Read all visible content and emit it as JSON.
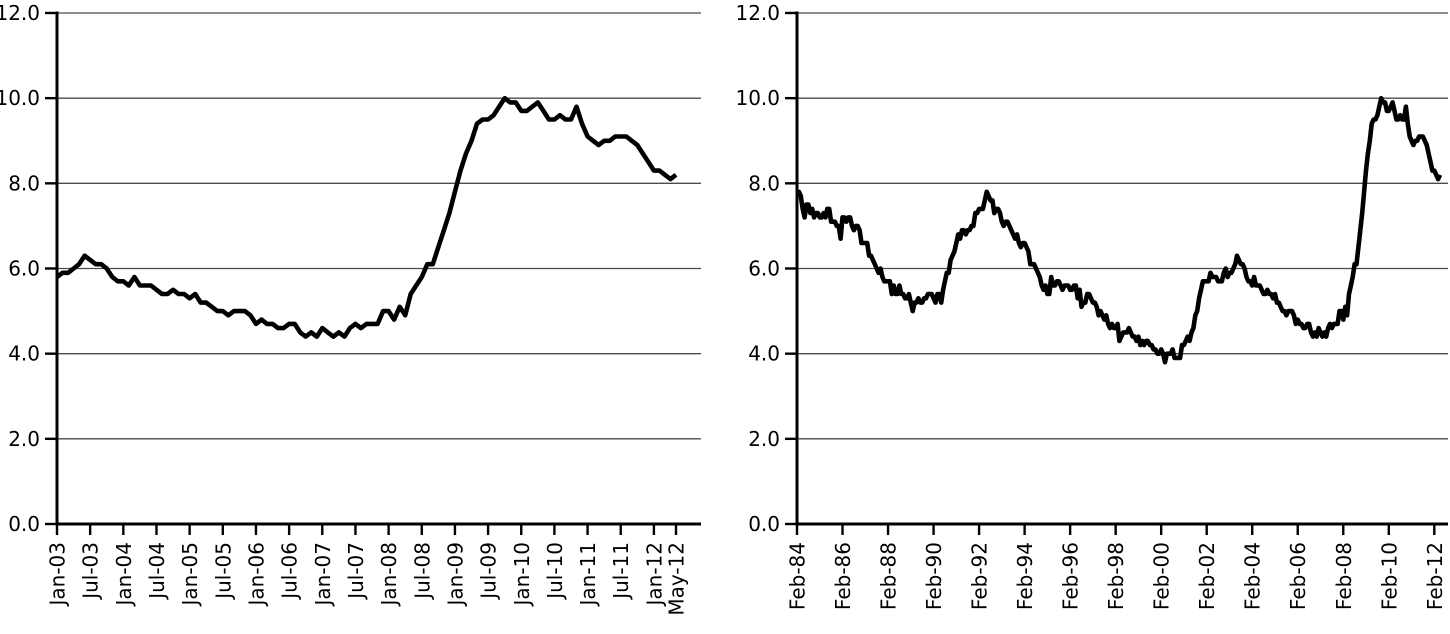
{
  "figure": {
    "description_note": "",
    "background": "#ffffff"
  },
  "colors": {
    "line": "#000000",
    "grid": "#4b4b4b",
    "axis": "#000000",
    "tick": "#000000",
    "text": "#000000",
    "background": "#ffffff"
  },
  "chart_data": [
    {
      "type": "line",
      "title": "",
      "xlabel": "",
      "ylabel": "",
      "legend": "none",
      "grid": "horizontal",
      "ylim": [
        0,
        12
      ],
      "ytick_step": 2,
      "ytick_labels": [
        "0.0",
        "2.0",
        "4.0",
        "6.0",
        "8.0",
        "10.0",
        "12.0"
      ],
      "x_frequency": "monthly",
      "xtick_labels": [
        "Jan-03",
        "Jul-03",
        "Jan-04",
        "Jul-04",
        "Jan-05",
        "Jul-05",
        "Jan-06",
        "Jul-06",
        "Jan-07",
        "Jul-07",
        "Jan-08",
        "Jul-08",
        "Jan-09",
        "Jul-09",
        "Jan-10",
        "Jul-10",
        "Jan-11",
        "Jul-11",
        "Jan-12",
        "May-12"
      ],
      "xtick_indices": [
        0,
        6,
        12,
        18,
        24,
        30,
        36,
        42,
        48,
        54,
        60,
        66,
        72,
        78,
        84,
        90,
        96,
        102,
        108,
        112
      ],
      "values": [
        5.8,
        5.9,
        5.9,
        6.0,
        6.1,
        6.3,
        6.2,
        6.1,
        6.1,
        6.0,
        5.8,
        5.7,
        5.7,
        5.6,
        5.8,
        5.6,
        5.6,
        5.6,
        5.5,
        5.4,
        5.4,
        5.5,
        5.4,
        5.4,
        5.3,
        5.4,
        5.2,
        5.2,
        5.1,
        5.0,
        5.0,
        4.9,
        5.0,
        5.0,
        5.0,
        4.9,
        4.7,
        4.8,
        4.7,
        4.7,
        4.6,
        4.6,
        4.7,
        4.7,
        4.5,
        4.4,
        4.5,
        4.4,
        4.6,
        4.5,
        4.4,
        4.5,
        4.4,
        4.6,
        4.7,
        4.6,
        4.7,
        4.7,
        4.7,
        5.0,
        5.0,
        4.8,
        5.1,
        4.9,
        5.4,
        5.6,
        5.8,
        6.1,
        6.1,
        6.5,
        6.9,
        7.3,
        7.8,
        8.3,
        8.7,
        9.0,
        9.4,
        9.5,
        9.5,
        9.6,
        9.8,
        10.0,
        9.9,
        9.9,
        9.7,
        9.7,
        9.8,
        9.9,
        9.7,
        9.5,
        9.5,
        9.6,
        9.5,
        9.5,
        9.8,
        9.4,
        9.1,
        9.0,
        8.9,
        9.0,
        9.0,
        9.1,
        9.1,
        9.1,
        9.0,
        8.9,
        8.7,
        8.5,
        8.3,
        8.3,
        8.2,
        8.1,
        8.2
      ]
    },
    {
      "type": "line",
      "title": "",
      "xlabel": "",
      "ylabel": "",
      "legend": "none",
      "grid": "horizontal",
      "ylim": [
        0,
        12
      ],
      "ytick_step": 2,
      "ytick_labels": [
        "0.0",
        "2.0",
        "4.0",
        "6.0",
        "8.0",
        "10.0",
        "12.0"
      ],
      "x_frequency": "monthly",
      "xtick_labels": [
        "Feb-84",
        "Feb-86",
        "Feb-88",
        "Feb-90",
        "Feb-92",
        "Feb-94",
        "Feb-96",
        "Feb-98",
        "Feb-00",
        "Feb-02",
        "Feb-04",
        "Feb-06",
        "Feb-08",
        "Feb-10",
        "Feb-12"
      ],
      "xtick_indices": [
        0,
        24,
        48,
        72,
        96,
        120,
        144,
        168,
        192,
        216,
        240,
        264,
        288,
        312,
        336
      ],
      "values": [
        7.8,
        7.8,
        7.7,
        7.4,
        7.2,
        7.5,
        7.5,
        7.3,
        7.4,
        7.2,
        7.3,
        7.3,
        7.2,
        7.2,
        7.3,
        7.2,
        7.4,
        7.4,
        7.1,
        7.1,
        7.1,
        7.0,
        7.0,
        6.7,
        7.2,
        7.2,
        7.1,
        7.2,
        7.2,
        7.0,
        6.9,
        7.0,
        7.0,
        6.9,
        6.6,
        6.6,
        6.6,
        6.6,
        6.3,
        6.3,
        6.2,
        6.1,
        6.0,
        5.9,
        6.0,
        5.8,
        5.7,
        5.7,
        5.7,
        5.7,
        5.4,
        5.6,
        5.4,
        5.4,
        5.6,
        5.4,
        5.4,
        5.3,
        5.3,
        5.4,
        5.2,
        5.0,
        5.2,
        5.2,
        5.3,
        5.2,
        5.2,
        5.3,
        5.3,
        5.4,
        5.4,
        5.4,
        5.3,
        5.2,
        5.4,
        5.4,
        5.2,
        5.5,
        5.7,
        5.9,
        5.9,
        6.2,
        6.3,
        6.4,
        6.6,
        6.8,
        6.7,
        6.9,
        6.9,
        6.8,
        6.9,
        6.9,
        7.0,
        7.0,
        7.3,
        7.3,
        7.4,
        7.4,
        7.4,
        7.6,
        7.8,
        7.7,
        7.6,
        7.6,
        7.3,
        7.4,
        7.4,
        7.3,
        7.1,
        7.0,
        7.1,
        7.1,
        7.0,
        6.9,
        6.8,
        6.7,
        6.8,
        6.6,
        6.5,
        6.6,
        6.6,
        6.5,
        6.4,
        6.1,
        6.1,
        6.1,
        6.0,
        5.9,
        5.8,
        5.6,
        5.5,
        5.6,
        5.4,
        5.4,
        5.8,
        5.6,
        5.6,
        5.7,
        5.7,
        5.6,
        5.5,
        5.6,
        5.6,
        5.6,
        5.5,
        5.5,
        5.6,
        5.6,
        5.3,
        5.5,
        5.1,
        5.2,
        5.2,
        5.4,
        5.4,
        5.3,
        5.2,
        5.2,
        5.1,
        4.9,
        5.0,
        4.9,
        4.8,
        4.9,
        4.7,
        4.6,
        4.7,
        4.6,
        4.6,
        4.7,
        4.3,
        4.4,
        4.5,
        4.5,
        4.5,
        4.6,
        4.5,
        4.4,
        4.4,
        4.3,
        4.4,
        4.2,
        4.3,
        4.2,
        4.3,
        4.3,
        4.2,
        4.2,
        4.1,
        4.1,
        4.0,
        4.0,
        4.1,
        4.0,
        3.8,
        4.0,
        4.0,
        4.0,
        4.1,
        3.9,
        3.9,
        3.9,
        3.9,
        4.2,
        4.2,
        4.3,
        4.4,
        4.3,
        4.5,
        4.6,
        4.9,
        5.0,
        5.3,
        5.5,
        5.7,
        5.7,
        5.7,
        5.7,
        5.9,
        5.8,
        5.8,
        5.8,
        5.7,
        5.7,
        5.7,
        5.9,
        6.0,
        5.8,
        5.9,
        5.9,
        6.0,
        6.1,
        6.3,
        6.2,
        6.1,
        6.1,
        6.0,
        5.8,
        5.7,
        5.7,
        5.6,
        5.8,
        5.6,
        5.6,
        5.6,
        5.5,
        5.4,
        5.4,
        5.5,
        5.4,
        5.4,
        5.3,
        5.4,
        5.2,
        5.2,
        5.1,
        5.0,
        5.0,
        4.9,
        5.0,
        5.0,
        5.0,
        4.9,
        4.7,
        4.8,
        4.7,
        4.7,
        4.6,
        4.6,
        4.7,
        4.7,
        4.5,
        4.4,
        4.5,
        4.4,
        4.6,
        4.5,
        4.4,
        4.5,
        4.4,
        4.6,
        4.7,
        4.6,
        4.7,
        4.7,
        4.7,
        5.0,
        5.0,
        4.8,
        5.1,
        4.9,
        5.4,
        5.6,
        5.8,
        6.1,
        6.1,
        6.5,
        6.9,
        7.3,
        7.8,
        8.3,
        8.7,
        9.0,
        9.4,
        9.5,
        9.5,
        9.6,
        9.8,
        10.0,
        9.9,
        9.9,
        9.7,
        9.7,
        9.8,
        9.9,
        9.7,
        9.5,
        9.5,
        9.6,
        9.5,
        9.5,
        9.8,
        9.4,
        9.1,
        9.0,
        8.9,
        9.0,
        9.0,
        9.1,
        9.1,
        9.1,
        9.0,
        8.9,
        8.7,
        8.5,
        8.3,
        8.3,
        8.2,
        8.1,
        8.2
      ]
    }
  ]
}
